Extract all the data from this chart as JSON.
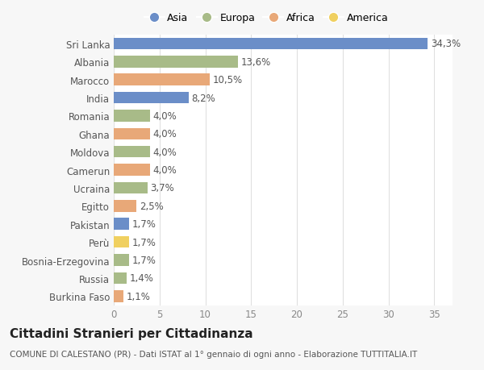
{
  "countries": [
    "Sri Lanka",
    "Albania",
    "Marocco",
    "India",
    "Romania",
    "Ghana",
    "Moldova",
    "Camerun",
    "Ucraina",
    "Egitto",
    "Pakistan",
    "Perù",
    "Bosnia-Erzegovina",
    "Russia",
    "Burkina Faso"
  ],
  "values": [
    34.3,
    13.6,
    10.5,
    8.2,
    4.0,
    4.0,
    4.0,
    4.0,
    3.7,
    2.5,
    1.7,
    1.7,
    1.7,
    1.4,
    1.1
  ],
  "labels": [
    "34,3%",
    "13,6%",
    "10,5%",
    "8,2%",
    "4,0%",
    "4,0%",
    "4,0%",
    "4,0%",
    "3,7%",
    "2,5%",
    "1,7%",
    "1,7%",
    "1,7%",
    "1,4%",
    "1,1%"
  ],
  "continents": [
    "Asia",
    "Europa",
    "Africa",
    "Asia",
    "Europa",
    "Africa",
    "Europa",
    "Africa",
    "Europa",
    "Africa",
    "Asia",
    "America",
    "Europa",
    "Europa",
    "Africa"
  ],
  "continent_colors": {
    "Asia": "#6b8ec8",
    "Europa": "#a8bb88",
    "Africa": "#e8a878",
    "America": "#f0d060"
  },
  "legend_order": [
    "Asia",
    "Europa",
    "Africa",
    "America"
  ],
  "title": "Cittadini Stranieri per Cittadinanza",
  "subtitle": "COMUNE DI CALESTANO (PR) - Dati ISTAT al 1° gennaio di ogni anno - Elaborazione TUTTITALIA.IT",
  "xlim": [
    0,
    37
  ],
  "xticks": [
    0,
    5,
    10,
    15,
    20,
    25,
    30,
    35
  ],
  "background_color": "#f7f7f7",
  "plot_background_color": "#ffffff",
  "grid_color": "#e0e0e0",
  "bar_height": 0.65,
  "title_fontsize": 11,
  "subtitle_fontsize": 7.5,
  "tick_fontsize": 8.5,
  "label_fontsize": 8.5
}
